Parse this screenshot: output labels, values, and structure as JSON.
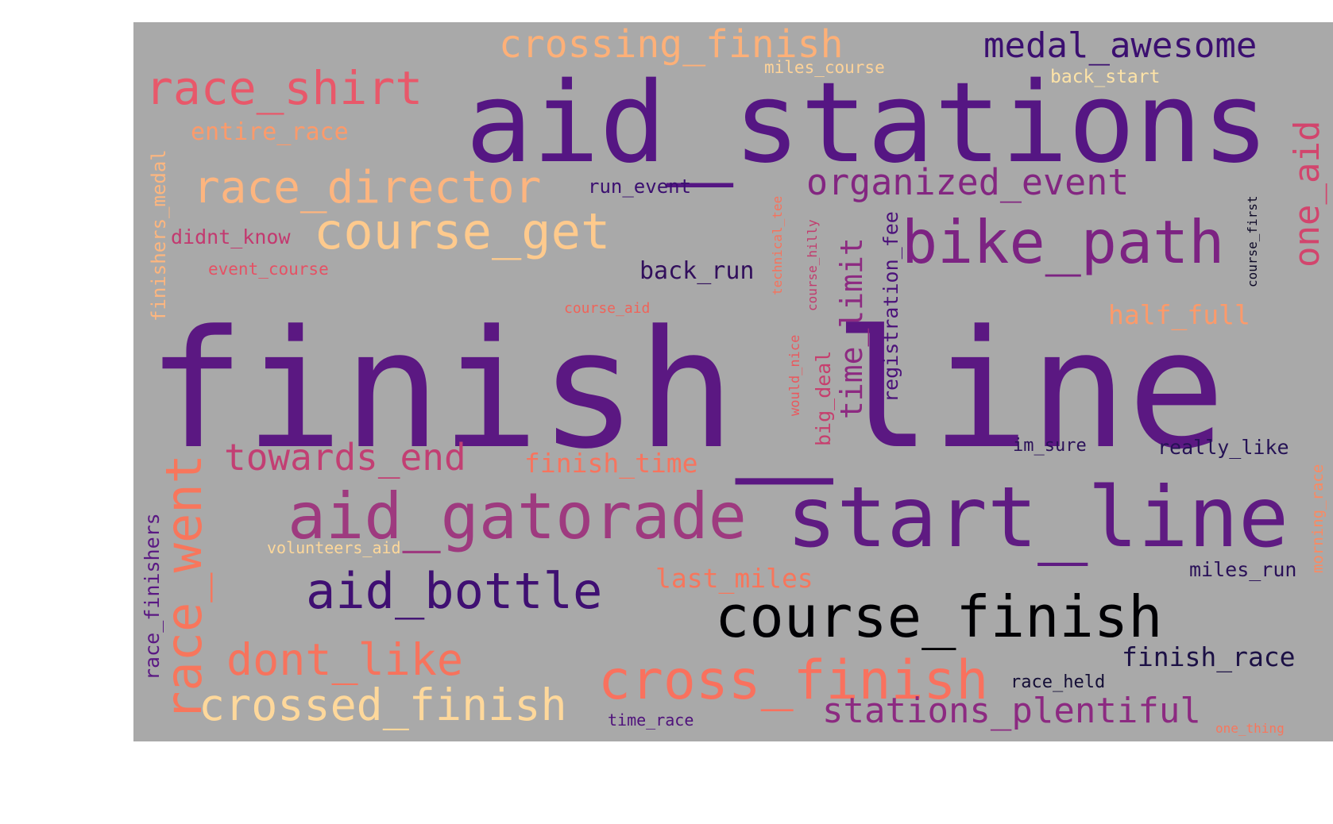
{
  "background_color": "#a9a9a9",
  "page_color": "#ffffff",
  "words": [
    {
      "text": "finish_line",
      "color": "#5b1882"
    },
    {
      "text": "aid_stations",
      "color": "#551683"
    },
    {
      "text": "start_line",
      "color": "#5f1b82"
    },
    {
      "text": "course_finish",
      "color": "#000004"
    },
    {
      "text": "aid_gatorade",
      "color": "#9e3a7f"
    },
    {
      "text": "bike_path",
      "color": "#7c2382"
    },
    {
      "text": "cross_finish",
      "color": "#f9715e"
    },
    {
      "text": "crossed_finish",
      "color": "#fed89b"
    },
    {
      "text": "aid_bottle",
      "color": "#3f0f72"
    },
    {
      "text": "race_went",
      "color": "#f8765c"
    },
    {
      "text": "course_get",
      "color": "#feca8d"
    },
    {
      "text": "race_director",
      "color": "#fdb57f"
    },
    {
      "text": "race_shirt",
      "color": "#e8586a"
    },
    {
      "text": "dont_like",
      "color": "#f7735d"
    },
    {
      "text": "crossing_finish",
      "color": "#fdb078"
    },
    {
      "text": "medal_awesome",
      "color": "#3b0f70"
    },
    {
      "text": "organized_event",
      "color": "#832681"
    },
    {
      "text": "towards_end",
      "color": "#c23f73"
    },
    {
      "text": "stations_plentiful",
      "color": "#8c2a81"
    },
    {
      "text": "one_aid",
      "color": "#d2456d"
    },
    {
      "text": "time_limit",
      "color": "#8d2a81"
    },
    {
      "text": "finish_race",
      "color": "#1c1145"
    },
    {
      "text": "finish_time",
      "color": "#f7745e"
    },
    {
      "text": "last_miles",
      "color": "#f7765c"
    },
    {
      "text": "half_full",
      "color": "#fd9a6a"
    },
    {
      "text": "back_run",
      "color": "#320f5c"
    },
    {
      "text": "really_like",
      "color": "#251255"
    },
    {
      "text": "registration_fee",
      "color": "#4b117a"
    },
    {
      "text": "big_deal",
      "color": "#c63f6e"
    },
    {
      "text": "race_finishers",
      "color": "#5a1883"
    },
    {
      "text": "miles_run",
      "color": "#2a1158"
    },
    {
      "text": "entire_race",
      "color": "#fd9a6a"
    },
    {
      "text": "finishers_medal",
      "color": "#fdb67f"
    },
    {
      "text": "didnt_know",
      "color": "#c3396f"
    },
    {
      "text": "run_event",
      "color": "#3b0f70"
    },
    {
      "text": "race_held",
      "color": "#140e36"
    },
    {
      "text": "im_sure",
      "color": "#2b1159"
    },
    {
      "text": "back_start",
      "color": "#fde3a7"
    },
    {
      "text": "miles_course",
      "color": "#fed398"
    },
    {
      "text": "event_course",
      "color": "#e55164"
    },
    {
      "text": "time_race",
      "color": "#4f127b"
    },
    {
      "text": "volunteers_aid",
      "color": "#fed89a"
    },
    {
      "text": "course_aid",
      "color": "#f06359"
    },
    {
      "text": "would_nice",
      "color": "#e9595e"
    },
    {
      "text": "technical_tee",
      "color": "#f7725c"
    },
    {
      "text": "course_hilly",
      "color": "#c23c6e"
    },
    {
      "text": "morning_race",
      "color": "#fc8961"
    },
    {
      "text": "course_first",
      "color": "#0c0826"
    },
    {
      "text": "one_thing",
      "color": "#f8765c"
    }
  ]
}
